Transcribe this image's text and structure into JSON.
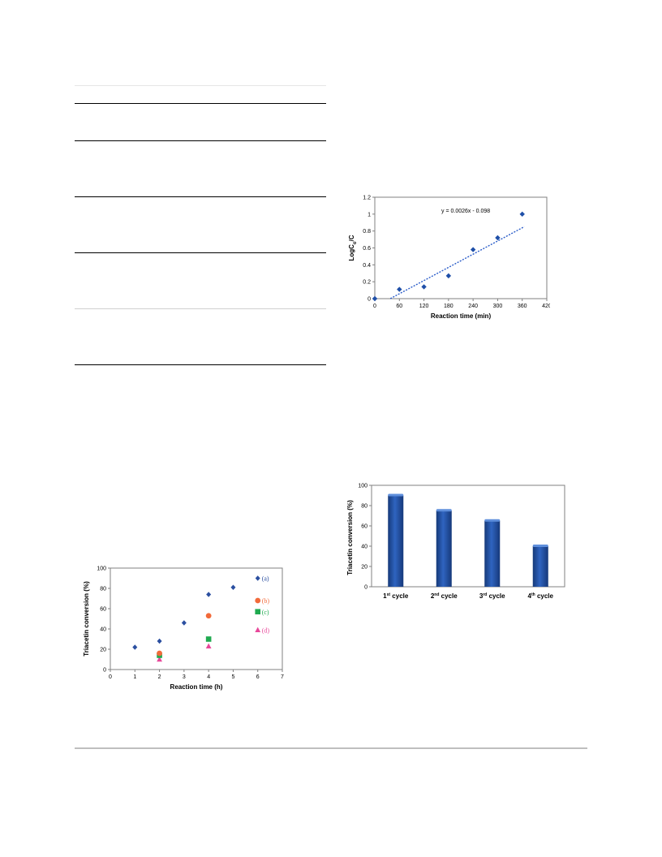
{
  "table_rules": {
    "count": 7
  },
  "chart_data": [
    {
      "type": "scatter",
      "xlabel": "Reaction time (min)",
      "ylabel": "LogC0/C",
      "ylabel_parts": {
        "main": "LogC",
        "sub": "o",
        "tail": "/C"
      },
      "xlim": [
        0,
        420
      ],
      "ylim": [
        0,
        1.2
      ],
      "x_ticks": [
        0,
        60,
        120,
        180,
        240,
        300,
        360,
        420
      ],
      "y_ticks": [
        "0",
        "0.2",
        "0.4",
        "0.6",
        "0.8",
        "1",
        "1.2"
      ],
      "series": [
        {
          "x": [
            0,
            60,
            120,
            180,
            240,
            300,
            360
          ],
          "y": [
            0,
            0.11,
            0.14,
            0.27,
            0.58,
            0.72,
            1.0
          ],
          "color": "#1f4fa8"
        }
      ],
      "trendline": {
        "equation": "y = 0.0026x - 0.098",
        "slope": 0.0026,
        "intercept": -0.098,
        "x_range": [
          38,
          365
        ],
        "color": "#2a5cc9"
      },
      "grid": false
    },
    {
      "type": "bar",
      "categories": [
        "1st cycle",
        "2nd cycle",
        "3rd cycle",
        "4th cycle"
      ],
      "category_parts": [
        {
          "num": "1",
          "sup": "st",
          "word": "cycle"
        },
        {
          "num": "2",
          "sup": "nd",
          "word": "cycle"
        },
        {
          "num": "3",
          "sup": "rd",
          "word": "cycle"
        },
        {
          "num": "4",
          "sup": "th",
          "word": "cycle"
        }
      ],
      "values": [
        90,
        75,
        65,
        40
      ],
      "ylabel": "Triacetin conversion (%)",
      "ylim": [
        0,
        100
      ],
      "y_ticks": [
        "0",
        "20",
        "40",
        "60",
        "80",
        "100"
      ],
      "bar_color": "#1f4c9c",
      "grid": false
    },
    {
      "type": "scatter",
      "xlabel": "Reaction time (h)",
      "ylabel": "Triacetin conversion (%)",
      "xlim": [
        0,
        7
      ],
      "ylim": [
        0,
        100
      ],
      "x_ticks": [
        "0",
        "1",
        "2",
        "3",
        "4",
        "5",
        "6",
        "7"
      ],
      "y_ticks": [
        "0",
        "20",
        "40",
        "60",
        "80",
        "100"
      ],
      "legend_placement": "right",
      "series": [
        {
          "name": "(a)",
          "marker": "diamond",
          "color": "#2b4fa0",
          "x": [
            1,
            2,
            3,
            4,
            5,
            6
          ],
          "y": [
            22,
            28,
            46,
            74,
            81,
            90
          ]
        },
        {
          "name": "(b)",
          "marker": "circle",
          "color": "#f26a3a",
          "x": [
            2,
            4,
            6
          ],
          "y": [
            16,
            53,
            68
          ]
        },
        {
          "name": "(c)",
          "marker": "square",
          "color": "#1faa4f",
          "x": [
            2,
            4,
            6
          ],
          "y": [
            14,
            30,
            57
          ]
        },
        {
          "name": "(d)",
          "marker": "triangle",
          "color": "#e8479a",
          "x": [
            2,
            4,
            6
          ],
          "y": [
            10,
            23,
            39
          ]
        }
      ],
      "grid": false
    }
  ]
}
